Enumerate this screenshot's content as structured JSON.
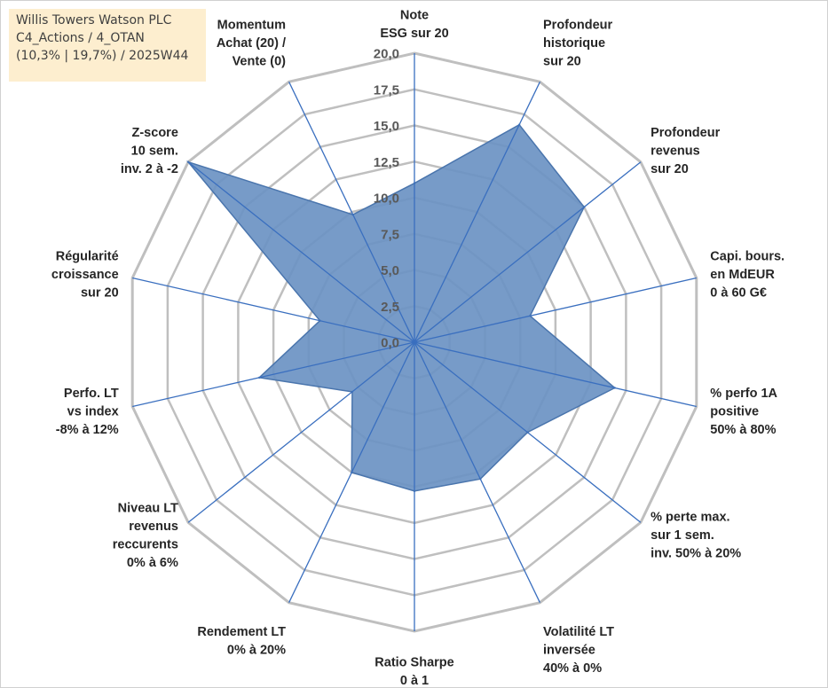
{
  "title_box": {
    "line1": "Willis Towers Watson PLC",
    "line2": "C4_Actions / 4_OTAN",
    "line3": "(10,3% | 19,7%) / 2025W44"
  },
  "colors": {
    "fill": "#6b93c3",
    "fill_opacity": 0.92,
    "stroke": "#4a75ad",
    "spoke": "#3a6fbf",
    "grid": "#bfbfbf"
  },
  "chart_data": {
    "type": "radar",
    "rmin": 0,
    "rmax": 20,
    "tick_step": 2.5,
    "tick_labels": [
      "0,0",
      "2,5",
      "5,0",
      "7,5",
      "10,0",
      "12,5",
      "15,0",
      "17,5",
      "20,0"
    ],
    "axes": [
      [
        "Note",
        "ESG sur 20"
      ],
      [
        "Profondeur",
        "historique",
        "sur 20"
      ],
      [
        "Profondeur",
        "revenus",
        "sur 20"
      ],
      [
        "Capi. bours.",
        "en MdEUR",
        "0 à 60 G€"
      ],
      [
        "% perfo 1A",
        "positive",
        "50% à 80%"
      ],
      [
        "% perte max.",
        "sur 1 sem.",
        "inv. 50% à 20%"
      ],
      [
        "Volatilité LT",
        "inversée",
        "40% à 0%"
      ],
      [
        "Ratio Sharpe",
        "0 à 1"
      ],
      [
        "Rendement LT",
        "0% à 20%"
      ],
      [
        "Niveau LT",
        "revenus",
        "reccurents",
        "0% à 6%"
      ],
      [
        "Perfo. LT",
        "vs index",
        "-8% à 12%"
      ],
      [
        "Régularité",
        "croissance",
        "sur 20"
      ],
      [
        "Z-score",
        "10 sem.",
        "inv. 2 à -2"
      ],
      [
        "Momentum",
        "Achat (20) /",
        "Vente (0)"
      ]
    ],
    "series": [
      {
        "values": [
          11.0,
          16.7,
          15.0,
          8.2,
          14.2,
          10.0,
          10.5,
          10.3,
          10.0,
          5.5,
          11.0,
          6.7,
          20.0,
          9.8
        ]
      }
    ]
  }
}
